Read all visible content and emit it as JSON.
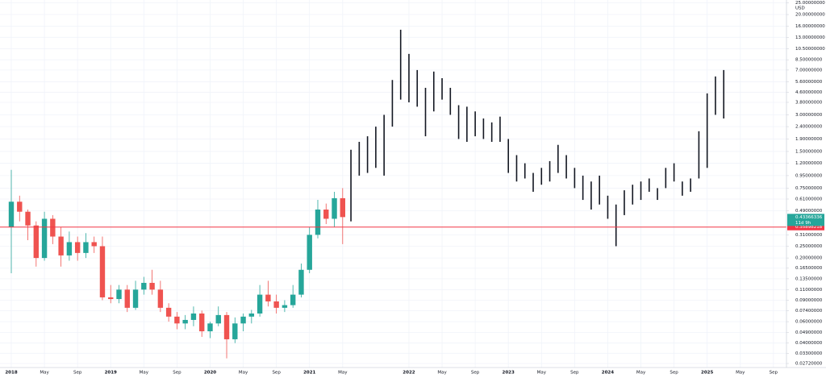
{
  "chart_data": {
    "type": "candlestick",
    "axis_unit": "USD",
    "log_scale": true,
    "grid": true,
    "ylim": [
      0.0252,
      25
    ],
    "yticks": [
      {
        "value": 25,
        "label": "25.00000000"
      },
      {
        "value": 20,
        "label": "20.00000000"
      },
      {
        "value": 16,
        "label": "16.00000000"
      },
      {
        "value": 13,
        "label": "13.00000000"
      },
      {
        "value": 10.5,
        "label": "10.50000000"
      },
      {
        "value": 8.5,
        "label": "8.50000000"
      },
      {
        "value": 7,
        "label": "7.00000000"
      },
      {
        "value": 5.6,
        "label": "5.60000000"
      },
      {
        "value": 4.6,
        "label": "4.60000000"
      },
      {
        "value": 3.8,
        "label": "3.80000000"
      },
      {
        "value": 3,
        "label": "3.00000000"
      },
      {
        "value": 2.4,
        "label": "2.40000000"
      },
      {
        "value": 1.9,
        "label": "1.90000000"
      },
      {
        "value": 1.5,
        "label": "1.50000000"
      },
      {
        "value": 1.2,
        "label": "1.20000000"
      },
      {
        "value": 0.95,
        "label": "0.95000000"
      },
      {
        "value": 0.75,
        "label": "0.75000000"
      },
      {
        "value": 0.61,
        "label": "0.61000000"
      },
      {
        "value": 0.49,
        "label": "0.49000000"
      },
      {
        "value": 0.31,
        "label": "0.31000000"
      },
      {
        "value": 0.25,
        "label": "0.25000000"
      },
      {
        "value": 0.2,
        "label": "0.20000000"
      },
      {
        "value": 0.165,
        "label": "0.16500000"
      },
      {
        "value": 0.135,
        "label": "0.13500000"
      },
      {
        "value": 0.11,
        "label": "0.11000000"
      },
      {
        "value": 0.09,
        "label": "0.09000000"
      },
      {
        "value": 0.074,
        "label": "0.07400000"
      },
      {
        "value": 0.06,
        "label": "0.06000000"
      },
      {
        "value": 0.049,
        "label": "0.04900000"
      },
      {
        "value": 0.04,
        "label": "0.04000000"
      },
      {
        "value": 0.033,
        "label": "0.03300000"
      },
      {
        "value": 0.0272,
        "label": "0.02720000"
      }
    ],
    "categories": [
      "2018",
      null,
      null,
      null,
      "May",
      null,
      null,
      null,
      "Sep",
      null,
      null,
      null,
      "2019",
      null,
      null,
      null,
      "May",
      null,
      null,
      null,
      "Sep",
      null,
      null,
      null,
      "2020",
      null,
      null,
      null,
      "May",
      null,
      null,
      null,
      "Sep",
      null,
      null,
      null,
      "2021",
      null,
      null,
      null,
      "May",
      null,
      null,
      null,
      null,
      null,
      null,
      null,
      "2022",
      null,
      null,
      null,
      "May",
      null,
      null,
      null,
      "Sep",
      null,
      null,
      null,
      "2023",
      null,
      null,
      null,
      "May",
      null,
      null,
      null,
      "Sep",
      null,
      null,
      null,
      "2024",
      null,
      null,
      null,
      "May",
      null,
      null,
      null,
      "Sep",
      null,
      null,
      null,
      "2025",
      null,
      null,
      null,
      "May",
      null,
      null,
      null,
      "Sep"
    ],
    "candles": {
      "up_color": "#26a69a",
      "down_color": "#ef5350",
      "open": [
        0.36,
        0.58,
        0.48,
        0.37,
        0.2,
        0.42,
        0.3,
        0.21,
        0.27,
        0.22,
        0.27,
        0.25,
        0.095,
        0.092,
        0.11,
        0.078,
        0.11,
        0.125,
        0.11,
        0.078,
        0.066,
        0.058,
        0.062,
        0.07,
        0.05,
        0.058,
        0.068,
        0.043,
        0.058,
        0.066,
        0.07,
        0.1,
        0.088,
        0.078,
        0.082,
        0.1,
        0.16,
        0.31,
        0.5,
        0.42,
        0.62,
        null,
        null,
        null,
        null,
        null,
        null,
        null,
        null,
        null,
        null,
        null,
        null,
        null,
        null,
        null,
        null,
        null,
        null,
        null,
        null,
        null,
        null,
        null,
        null,
        null,
        null,
        null,
        null,
        null,
        null,
        null,
        null,
        null,
        null,
        null,
        null,
        null,
        null,
        null,
        null,
        null,
        null,
        null,
        null,
        null,
        null,
        null,
        null,
        null,
        null,
        null,
        null
      ],
      "high": [
        1.06,
        0.65,
        0.5,
        0.4,
        0.48,
        0.45,
        0.36,
        0.33,
        0.3,
        0.32,
        0.3,
        0.3,
        0.12,
        0.12,
        0.12,
        0.13,
        0.14,
        0.16,
        0.13,
        0.085,
        0.072,
        0.068,
        0.08,
        0.074,
        0.06,
        0.08,
        0.072,
        0.065,
        0.07,
        0.075,
        0.12,
        0.13,
        0.1,
        0.09,
        0.12,
        0.18,
        0.36,
        0.6,
        0.56,
        0.7,
        0.75,
        null,
        null,
        null,
        null,
        null,
        null,
        null,
        null,
        null,
        null,
        null,
        null,
        null,
        null,
        null,
        null,
        null,
        null,
        null,
        null,
        null,
        null,
        null,
        null,
        null,
        null,
        null,
        null,
        null,
        null,
        null,
        null,
        null,
        null,
        null,
        null,
        null,
        null,
        null,
        null,
        null,
        null,
        null,
        null,
        null,
        null,
        null,
        null,
        null,
        null,
        null,
        null
      ],
      "low": [
        0.15,
        0.4,
        0.28,
        0.17,
        0.19,
        0.26,
        0.17,
        0.19,
        0.19,
        0.2,
        0.22,
        0.09,
        0.085,
        0.085,
        0.072,
        0.075,
        0.1,
        0.1,
        0.072,
        0.06,
        0.052,
        0.052,
        0.055,
        0.045,
        0.044,
        0.055,
        0.03,
        0.04,
        0.05,
        0.058,
        0.066,
        0.08,
        0.07,
        0.072,
        0.078,
        0.095,
        0.15,
        0.29,
        0.38,
        0.36,
        0.26,
        null,
        null,
        null,
        null,
        null,
        null,
        null,
        null,
        null,
        null,
        null,
        null,
        null,
        null,
        null,
        null,
        null,
        null,
        null,
        null,
        null,
        null,
        null,
        null,
        null,
        null,
        null,
        null,
        null,
        null,
        null,
        null,
        null,
        null,
        null,
        null,
        null,
        null,
        null,
        null,
        null,
        null,
        null,
        null,
        null,
        null,
        null,
        null,
        null,
        null,
        null,
        null
      ],
      "close": [
        0.58,
        0.48,
        0.37,
        0.2,
        0.42,
        0.3,
        0.21,
        0.27,
        0.22,
        0.27,
        0.25,
        0.095,
        0.092,
        0.11,
        0.078,
        0.11,
        0.125,
        0.11,
        0.078,
        0.066,
        0.058,
        0.062,
        0.07,
        0.05,
        0.058,
        0.068,
        0.043,
        0.058,
        0.066,
        0.07,
        0.1,
        0.088,
        0.078,
        0.082,
        0.1,
        0.16,
        0.31,
        0.5,
        0.42,
        0.62,
        0.43366336,
        null,
        null,
        null,
        null,
        null,
        null,
        null,
        null,
        null,
        null,
        null,
        null,
        null,
        null,
        null,
        null,
        null,
        null,
        null,
        null,
        null,
        null,
        null,
        null,
        null,
        null,
        null,
        null,
        null,
        null,
        null,
        null,
        null,
        null,
        null,
        null,
        null,
        null,
        null,
        null,
        null,
        null,
        null,
        null,
        null,
        null,
        null,
        null,
        null,
        null,
        null,
        null
      ]
    },
    "bars": {
      "color": "#131722",
      "high": [
        null,
        null,
        null,
        null,
        null,
        null,
        null,
        null,
        null,
        null,
        null,
        null,
        null,
        null,
        null,
        null,
        null,
        null,
        null,
        null,
        null,
        null,
        null,
        null,
        null,
        null,
        null,
        null,
        null,
        null,
        null,
        null,
        null,
        null,
        null,
        null,
        null,
        null,
        null,
        null,
        null,
        1.55,
        1.8,
        2.0,
        2.4,
        3.0,
        5.8,
        15.0,
        9.5,
        7.0,
        5.0,
        6.8,
        6.0,
        5.0,
        3.6,
        3.5,
        3.2,
        2.8,
        2.6,
        2.9,
        1.9,
        1.4,
        1.2,
        1.0,
        1.1,
        1.25,
        1.7,
        1.4,
        1.1,
        0.95,
        0.85,
        0.95,
        0.65,
        0.55,
        0.72,
        0.8,
        0.85,
        0.9,
        0.75,
        1.1,
        1.2,
        0.85,
        0.9,
        2.2,
        4.5,
        6.2,
        7.0,
        null,
        null,
        null,
        null,
        null,
        null
      ],
      "low": [
        null,
        null,
        null,
        null,
        null,
        null,
        null,
        null,
        null,
        null,
        null,
        null,
        null,
        null,
        null,
        null,
        null,
        null,
        null,
        null,
        null,
        null,
        null,
        null,
        null,
        null,
        null,
        null,
        null,
        null,
        null,
        null,
        null,
        null,
        null,
        null,
        null,
        null,
        null,
        null,
        null,
        0.4,
        0.95,
        1.0,
        1.1,
        0.95,
        2.4,
        4.0,
        3.8,
        3.5,
        2.0,
        3.2,
        4.0,
        3.0,
        1.9,
        1.8,
        2.0,
        1.9,
        1.8,
        1.8,
        1.0,
        0.85,
        0.9,
        0.7,
        0.8,
        0.85,
        1.0,
        0.9,
        0.75,
        0.6,
        0.5,
        0.55,
        0.42,
        0.25,
        0.45,
        0.55,
        0.6,
        0.7,
        0.6,
        0.75,
        0.85,
        0.65,
        0.7,
        0.9,
        1.1,
        3.0,
        2.8,
        null,
        null,
        null,
        null,
        null,
        null
      ]
    },
    "last_price": 0.43366336,
    "last_price_color": "#26a69a",
    "countdown": "11d 9h",
    "horizontal_line": 0.35898218,
    "horizontal_line_color": "#f23645"
  }
}
